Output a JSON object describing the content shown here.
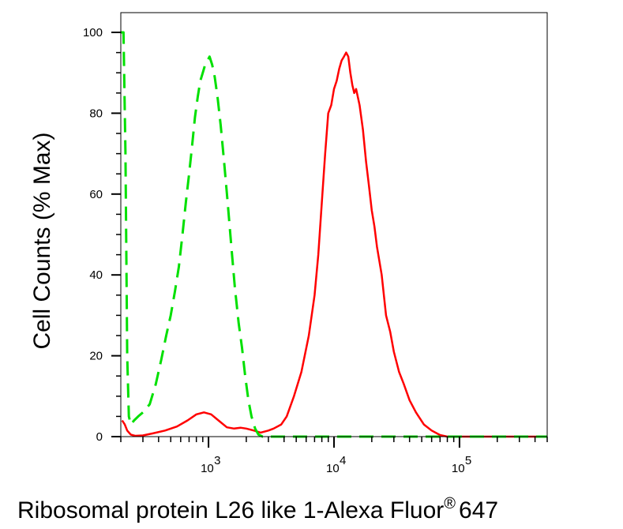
{
  "chart_data": {
    "type": "line",
    "title": "",
    "xlabel": "Ribosomal protein L26 like 1-Alexa Fluor",
    "xlabel_suffix": "®",
    "xlabel_tail": "647",
    "ylabel": "Cell Counts (% Max)",
    "x_scale": "log",
    "xlim": [
      200,
      500000
    ],
    "ylim": [
      0,
      100
    ],
    "y_ticks": [
      0,
      20,
      40,
      60,
      80,
      100
    ],
    "y_tick_labels": [
      "0",
      "20",
      "40",
      "60",
      "80",
      "100"
    ],
    "x_major_ticks": [
      1000,
      10000,
      100000
    ],
    "x_tick_labels": [
      {
        "base": "10",
        "exp": "3"
      },
      {
        "base": "10",
        "exp": "4"
      },
      {
        "base": "10",
        "exp": "5"
      }
    ],
    "grid": false,
    "legend": "none",
    "series": [
      {
        "color": "#ff0000",
        "style": "solid",
        "points": [
          [
            205,
            4
          ],
          [
            215,
            3
          ],
          [
            225,
            1.5
          ],
          [
            240,
            0.5
          ],
          [
            260,
            0.2
          ],
          [
            300,
            0.3
          ],
          [
            360,
            0.8
          ],
          [
            450,
            1.5
          ],
          [
            560,
            2.5
          ],
          [
            680,
            4
          ],
          [
            800,
            5.5
          ],
          [
            920,
            6
          ],
          [
            1050,
            5.5
          ],
          [
            1200,
            4
          ],
          [
            1400,
            2.3
          ],
          [
            1600,
            2
          ],
          [
            1800,
            2.2
          ],
          [
            2000,
            2
          ],
          [
            2300,
            1.5
          ],
          [
            2600,
            1
          ],
          [
            3000,
            1.5
          ],
          [
            3300,
            2
          ],
          [
            3800,
            3
          ],
          [
            4200,
            5
          ],
          [
            4800,
            10
          ],
          [
            5500,
            16
          ],
          [
            6300,
            25
          ],
          [
            7000,
            35
          ],
          [
            7500,
            45
          ],
          [
            8000,
            58
          ],
          [
            8500,
            70
          ],
          [
            9000,
            80
          ],
          [
            9500,
            82
          ],
          [
            10000,
            86
          ],
          [
            10500,
            88
          ],
          [
            11000,
            91
          ],
          [
            11500,
            93
          ],
          [
            12000,
            94
          ],
          [
            12500,
            95
          ],
          [
            13000,
            94
          ],
          [
            13500,
            90
          ],
          [
            14000,
            87
          ],
          [
            14500,
            85
          ],
          [
            15000,
            86
          ],
          [
            16000,
            82
          ],
          [
            17000,
            76
          ],
          [
            18000,
            68
          ],
          [
            19000,
            62
          ],
          [
            20000,
            56
          ],
          [
            21000,
            52
          ],
          [
            22000,
            47
          ],
          [
            24000,
            40
          ],
          [
            26000,
            30
          ],
          [
            28000,
            26
          ],
          [
            30000,
            21
          ],
          [
            33000,
            16
          ],
          [
            36000,
            13
          ],
          [
            40000,
            9
          ],
          [
            45000,
            6
          ],
          [
            52000,
            3
          ],
          [
            60000,
            1.5
          ],
          [
            70000,
            0.4
          ],
          [
            80000,
            0
          ],
          [
            100000,
            0
          ],
          [
            200000,
            0
          ],
          [
            500000,
            0
          ]
        ]
      },
      {
        "color": "#00e000",
        "style": "dashed",
        "points": [
          [
            200,
            100
          ],
          [
            210,
            100
          ],
          [
            218,
            70
          ],
          [
            225,
            20
          ],
          [
            232,
            5
          ],
          [
            240,
            3
          ],
          [
            255,
            4
          ],
          [
            275,
            5
          ],
          [
            300,
            6
          ],
          [
            340,
            8
          ],
          [
            380,
            13
          ],
          [
            420,
            19
          ],
          [
            460,
            25
          ],
          [
            500,
            30
          ],
          [
            540,
            36
          ],
          [
            580,
            42
          ],
          [
            620,
            50
          ],
          [
            660,
            58
          ],
          [
            700,
            65
          ],
          [
            740,
            72
          ],
          [
            780,
            79
          ],
          [
            820,
            84
          ],
          [
            860,
            88
          ],
          [
            900,
            90
          ],
          [
            940,
            92
          ],
          [
            980,
            93
          ],
          [
            1020,
            94
          ],
          [
            1070,
            92
          ],
          [
            1120,
            89
          ],
          [
            1180,
            84
          ],
          [
            1250,
            77
          ],
          [
            1330,
            68
          ],
          [
            1420,
            58
          ],
          [
            1520,
            47
          ],
          [
            1620,
            37
          ],
          [
            1740,
            28
          ],
          [
            1850,
            22
          ],
          [
            1960,
            15
          ],
          [
            2080,
            9
          ],
          [
            2200,
            5
          ],
          [
            2350,
            2
          ],
          [
            2500,
            0.5
          ],
          [
            2700,
            0
          ],
          [
            100000,
            0
          ],
          [
            500000,
            0
          ]
        ]
      }
    ]
  }
}
